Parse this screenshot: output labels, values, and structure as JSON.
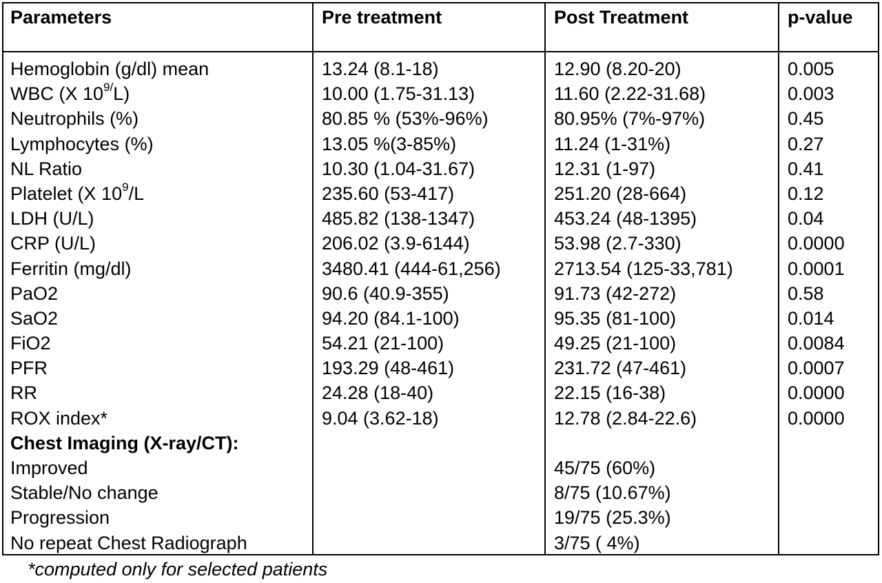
{
  "header": {
    "col0": "Parameters",
    "col1": "Pre treatment",
    "col2": "Post Treatment",
    "col3": "p-value"
  },
  "rows": [
    {
      "param": "Hemoglobin (g/dl) mean",
      "pre": "13.24 (8.1-18)",
      "post": "12.90 (8.20-20)",
      "p": "0.005"
    },
    {
      "param_pre": "WBC (X 10",
      "param_sup": "9/",
      "param_post": "L)",
      "pre": "10.00 (1.75-31.13)",
      "post": "11.60 (2.22-31.68)",
      "p": "0.003"
    },
    {
      "param": "Neutrophils (%)",
      "pre": "80.85 % (53%-96%)",
      "post": "80.95% (7%-97%)",
      "p": "0.45"
    },
    {
      "param": "Lymphocytes (%)",
      "pre": "13.05 %(3-85%)",
      "post": "11.24 (1-31%)",
      "p": "0.27"
    },
    {
      "param": "NL Ratio",
      "pre": "10.30 (1.04-31.67)",
      "post": "12.31 (1-97)",
      "p": "0.41"
    },
    {
      "param_pre": "Platelet (X 10",
      "param_sup": "9",
      "param_post": "/L",
      "pre": "235.60 (53-417)",
      "post": "251.20 (28-664)",
      "p": "0.12"
    },
    {
      "param": "LDH (U/L)",
      "pre": "485.82 (138-1347)",
      "post": "453.24 (48-1395)",
      "p": "0.04"
    },
    {
      "param": "CRP (U/L)",
      "pre": "206.02 (3.9-6144)",
      "post": "53.98 (2.7-330)",
      "p": "0.0000"
    },
    {
      "param": "Ferritin (mg/dl)",
      "pre": "3480.41 (444-61,256)",
      "post": "2713.54 (125-33,781)",
      "p": "0.0001"
    },
    {
      "param": "PaO2",
      "pre": "90.6 (40.9-355)",
      "post": "91.73 (42-272)",
      "p": "0.58"
    },
    {
      "param": "SaO2",
      "pre": "94.20 (84.1-100)",
      "post": "95.35 (81-100)",
      "p": "0.014"
    },
    {
      "param": "FiO2",
      "pre": "54.21 (21-100)",
      "post": "49.25 (21-100)",
      "p": "0.0084"
    },
    {
      "param": "PFR",
      "pre": "193.29 (48-461)",
      "post": "231.72 (47-461)",
      "p": "0.0007"
    },
    {
      "param": "RR",
      "pre": "24.28 (18-40)",
      "post": "22.15 (16-38)",
      "p": "0.0000"
    },
    {
      "param": "ROX index*",
      "pre": "9.04 (3.62-18)",
      "post": "12.78 (2.84-22.6)",
      "p": "0.0000"
    },
    {
      "param": "Chest Imaging (X-ray/CT):",
      "pre": "",
      "post": "",
      "p": ""
    },
    {
      "param": "Improved",
      "pre": "",
      "post": "45/75 (60%)",
      "p": ""
    },
    {
      "param": "Stable/No change",
      "pre": "",
      "post": "8/75 (10.67%)",
      "p": ""
    },
    {
      "param": "Progression",
      "pre": "",
      "post": "19/75 (25.3%)",
      "p": ""
    },
    {
      "param": "No repeat Chest Radiograph",
      "pre": "",
      "post": "3/75 ( 4%)",
      "p": ""
    }
  ],
  "footnote": "*computed only for selected patients"
}
